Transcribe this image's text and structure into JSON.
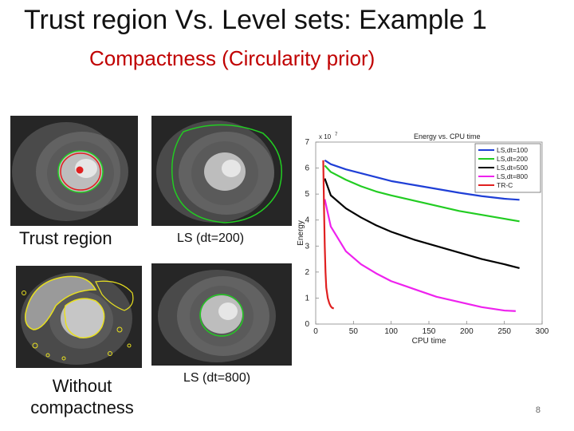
{
  "slide": {
    "title": "Trust region Vs. Level sets: Example 1",
    "subtitle": "Compactness (Circularity prior)",
    "page_number": "8"
  },
  "panels": {
    "trust_region_caption": "Trust region",
    "ls200_caption": "LS (dt=200)",
    "without_caption_line1": "Without",
    "without_caption_line2": "compactness",
    "ls800_caption": "LS (dt=800)"
  },
  "colors": {
    "red": "#e02020",
    "green": "#22cc22",
    "yellow": "#e8e020",
    "blue": "#1f3fd6",
    "black": "#000000",
    "magenta": "#ee22ee"
  },
  "chart_data": {
    "type": "line",
    "title": "Energy vs. CPU time",
    "xlabel": "CPU time",
    "ylabel": "Energy",
    "y_multiplier": "x 10^7",
    "xlim": [
      0,
      300
    ],
    "ylim": [
      0,
      7
    ],
    "xticks": [
      0,
      50,
      100,
      150,
      200,
      250,
      300
    ],
    "yticks": [
      0,
      1,
      2,
      3,
      4,
      5,
      6,
      7
    ],
    "legend_position": "top-right",
    "series": [
      {
        "name": "LS,dt=100",
        "color": "#1f3fd6",
        "x": [
          12,
          20,
          40,
          60,
          80,
          100,
          130,
          160,
          190,
          220,
          250,
          270
        ],
        "y": [
          6.3,
          6.15,
          5.95,
          5.8,
          5.65,
          5.5,
          5.35,
          5.2,
          5.05,
          4.92,
          4.82,
          4.78
        ]
      },
      {
        "name": "LS,dt=200",
        "color": "#22cc22",
        "x": [
          12,
          20,
          40,
          60,
          80,
          100,
          130,
          160,
          190,
          220,
          250,
          270
        ],
        "y": [
          6.1,
          5.85,
          5.55,
          5.3,
          5.1,
          4.95,
          4.75,
          4.55,
          4.35,
          4.2,
          4.05,
          3.95
        ]
      },
      {
        "name": "LS,dt=500",
        "color": "#000000",
        "x": [
          12,
          20,
          40,
          60,
          80,
          100,
          130,
          160,
          190,
          220,
          250,
          270
        ],
        "y": [
          5.6,
          4.95,
          4.45,
          4.1,
          3.8,
          3.55,
          3.25,
          3.0,
          2.75,
          2.5,
          2.3,
          2.15
        ]
      },
      {
        "name": "LS,dt=800",
        "color": "#ee22ee",
        "x": [
          12,
          20,
          40,
          60,
          80,
          100,
          130,
          160,
          190,
          220,
          250,
          265
        ],
        "y": [
          4.8,
          3.75,
          2.8,
          2.3,
          1.95,
          1.65,
          1.35,
          1.05,
          0.85,
          0.65,
          0.52,
          0.5
        ]
      },
      {
        "name": "TR-C",
        "color": "#e02020",
        "x": [
          10,
          11,
          12,
          13,
          14,
          16,
          18,
          20,
          22,
          24
        ],
        "y": [
          6.3,
          4.5,
          3.0,
          2.0,
          1.4,
          1.0,
          0.8,
          0.68,
          0.62,
          0.6
        ]
      }
    ]
  }
}
